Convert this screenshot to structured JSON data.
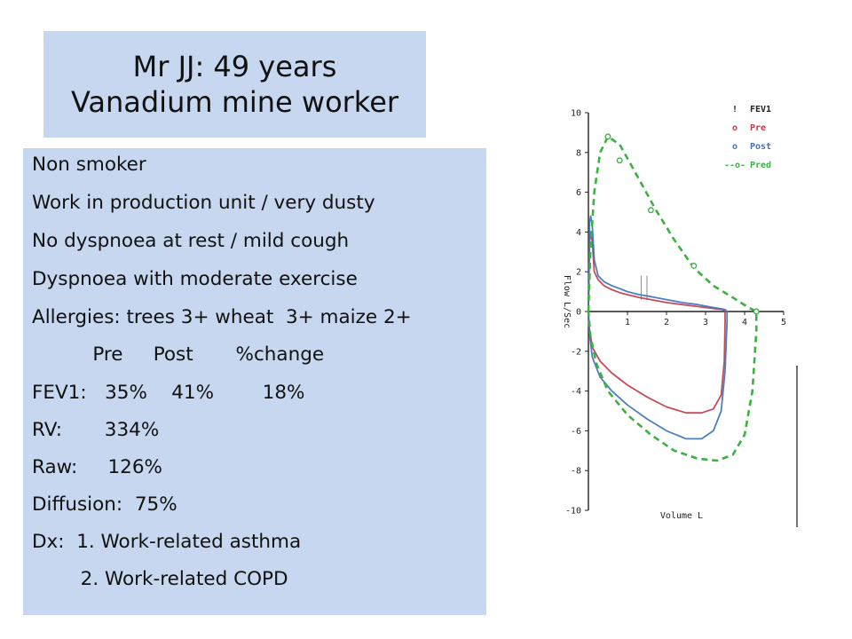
{
  "slide": {
    "title_lines": [
      "Mr JJ: 49 years",
      "Vanadium mine worker"
    ],
    "info_lines": [
      "Non smoker",
      "Work in production unit / very dusty",
      "No dyspnoea at rest / mild cough",
      "Dyspnoea with moderate exercise",
      "Allergies: trees 3+ wheat  3+ maize 2+",
      "          Pre     Post       %change",
      "FEV1:   35%    41%        18%",
      "RV:       334%",
      "Raw:     126%",
      "Diffusion:  75%",
      "Dx:  1. Work-related asthma",
      "        2. Work-related COPD"
    ]
  },
  "chart_data": {
    "type": "line",
    "xlabel": "Volume L",
    "ylabel": "Flow L/Sec",
    "xlim": [
      0,
      5
    ],
    "ylim": [
      -10,
      10
    ],
    "x_ticks": [
      "1",
      "2",
      "3",
      "4",
      "5"
    ],
    "y_ticks": [
      "10",
      "8",
      "6",
      "4",
      "2",
      "0",
      "-2",
      "-4",
      "-6",
      "-8",
      "-10"
    ],
    "legend_position": "top-right",
    "fev1_marker_x": [
      1.35,
      1.5
    ],
    "series": [
      {
        "name": "Pre",
        "color": "#c0394a",
        "x": [
          0.0,
          0.03,
          0.06,
          0.1,
          0.15,
          0.25,
          0.4,
          0.6,
          0.8,
          1.0,
          1.3,
          1.6,
          2.0,
          2.4,
          2.8,
          3.2,
          3.45,
          3.5,
          3.5,
          3.48,
          3.4,
          3.2,
          2.9,
          2.5,
          2.0,
          1.5,
          1.0,
          0.6,
          0.3,
          0.1,
          0.02,
          0.0
        ],
        "y": [
          0.0,
          3.5,
          4.0,
          3.5,
          2.0,
          1.6,
          1.3,
          1.1,
          0.95,
          0.85,
          0.7,
          0.6,
          0.45,
          0.35,
          0.25,
          0.15,
          0.1,
          0.0,
          -0.5,
          -2.5,
          -4.2,
          -4.9,
          -5.1,
          -5.1,
          -4.8,
          -4.3,
          -3.7,
          -3.1,
          -2.5,
          -1.8,
          -0.8,
          0.0
        ]
      },
      {
        "name": "Post",
        "color": "#3a72b8",
        "x": [
          0.0,
          0.03,
          0.06,
          0.1,
          0.15,
          0.25,
          0.4,
          0.6,
          0.8,
          1.0,
          1.3,
          1.6,
          2.0,
          2.4,
          2.8,
          3.2,
          3.5,
          3.55,
          3.55,
          3.5,
          3.4,
          3.2,
          2.9,
          2.5,
          2.0,
          1.5,
          1.0,
          0.6,
          0.3,
          0.1,
          0.02,
          0.0
        ],
        "y": [
          0.0,
          4.5,
          4.8,
          4.3,
          2.6,
          1.8,
          1.5,
          1.3,
          1.15,
          1.0,
          0.85,
          0.75,
          0.6,
          0.45,
          0.35,
          0.2,
          0.1,
          0.0,
          -0.5,
          -3.0,
          -5.0,
          -6.0,
          -6.4,
          -6.4,
          -6.0,
          -5.4,
          -4.7,
          -4.0,
          -3.3,
          -2.3,
          -1.0,
          0.0
        ]
      },
      {
        "name": "Pred",
        "color": "#3cb043",
        "x": [
          0.0,
          0.05,
          0.15,
          0.3,
          0.5,
          0.8,
          1.2,
          1.7,
          2.2,
          2.7,
          3.2,
          3.7,
          4.1,
          4.3,
          4.3,
          4.2,
          4.0,
          3.7,
          3.3,
          2.8,
          2.2,
          1.6,
          1.0,
          0.5,
          0.2,
          0.05,
          0.0
        ],
        "y": [
          0.0,
          3.0,
          6.0,
          8.0,
          8.8,
          8.4,
          7.0,
          5.2,
          3.6,
          2.2,
          1.3,
          0.7,
          0.2,
          0.0,
          -1.0,
          -4.0,
          -6.2,
          -7.2,
          -7.5,
          -7.4,
          -7.0,
          -6.2,
          -5.2,
          -4.0,
          -2.6,
          -1.2,
          0.0
        ]
      },
      {
        "name": "Pred",
        "color": "#3cb043",
        "x": [
          0.5,
          0.8,
          1.6,
          2.7,
          4.3
        ],
        "y": [
          8.8,
          7.6,
          5.1,
          2.3,
          0.0
        ]
      }
    ]
  },
  "legend": [
    {
      "label": "FEV1",
      "color": "#222222",
      "glyph": "!"
    },
    {
      "label": "Pre",
      "color": "#c0394a",
      "glyph": "o"
    },
    {
      "label": "Post",
      "color": "#3a72b8",
      "glyph": "o"
    },
    {
      "label": "Pred",
      "color": "#3cb043",
      "glyph": "--o-"
    }
  ]
}
